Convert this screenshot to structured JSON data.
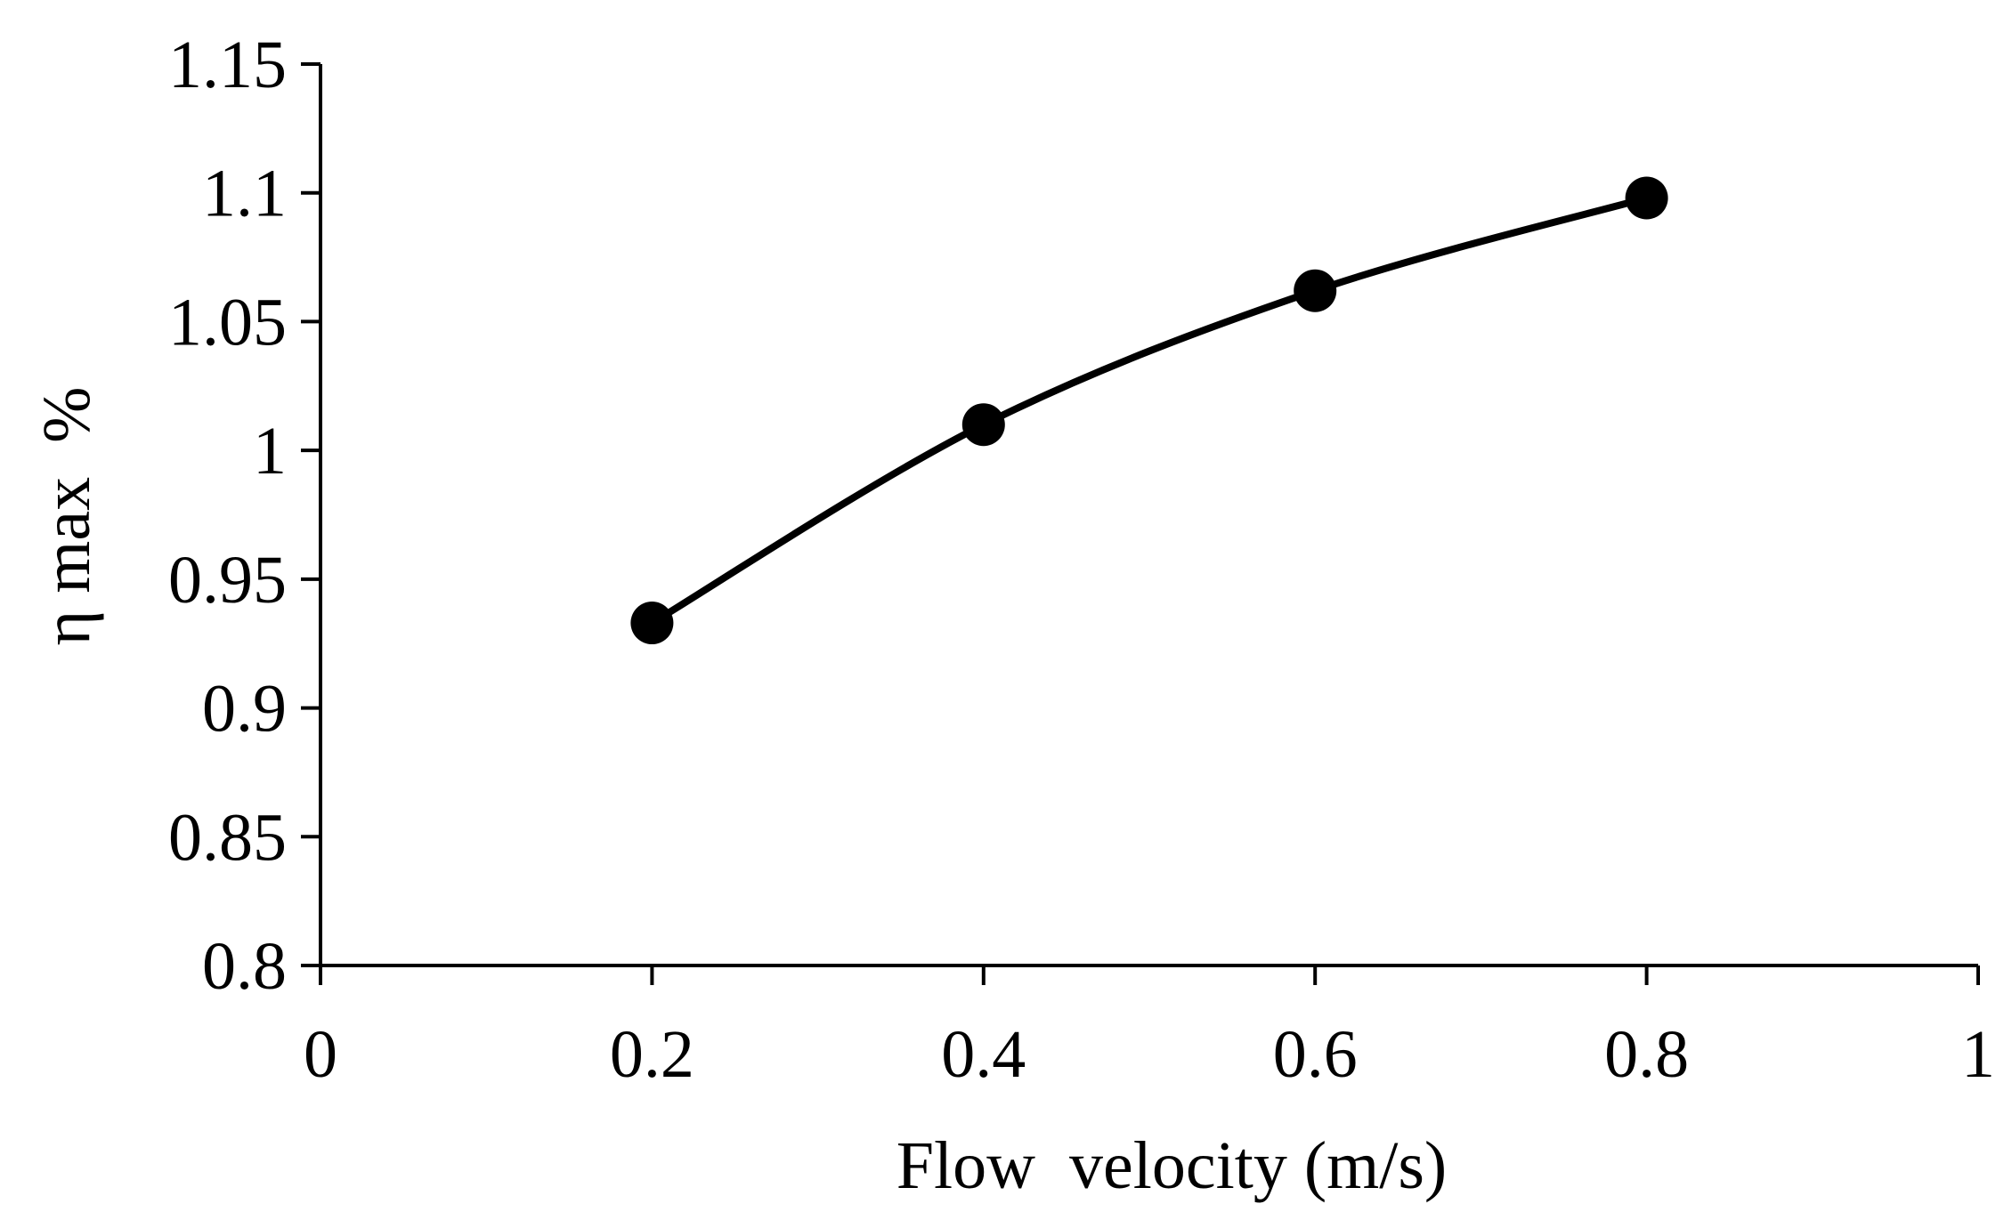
{
  "chart_data": {
    "type": "line",
    "title": "",
    "xlabel": "Flow  velocity (m/s)",
    "ylabel": "η max  %",
    "xlim": [
      0,
      1
    ],
    "ylim": [
      0.8,
      1.15
    ],
    "xticks": [
      0,
      0.2,
      0.4,
      0.6,
      0.8,
      1
    ],
    "xtick_labels": [
      "0",
      "0.2",
      "0.4",
      "0.6",
      "0.8",
      "1"
    ],
    "yticks": [
      0.8,
      0.85,
      0.9,
      0.95,
      1,
      1.05,
      1.1,
      1.15
    ],
    "ytick_labels": [
      "0.8",
      "0.85",
      "0.9",
      "0.95",
      "1",
      "1.05",
      "1.1",
      "1.15"
    ],
    "grid": false,
    "legend": "none",
    "series": [
      {
        "name": "η max",
        "color": "#000000",
        "marker": "circle",
        "smooth": true,
        "x": [
          0.2,
          0.4,
          0.6,
          0.8
        ],
        "y": [
          0.933,
          1.01,
          1.062,
          1.098
        ]
      }
    ]
  }
}
